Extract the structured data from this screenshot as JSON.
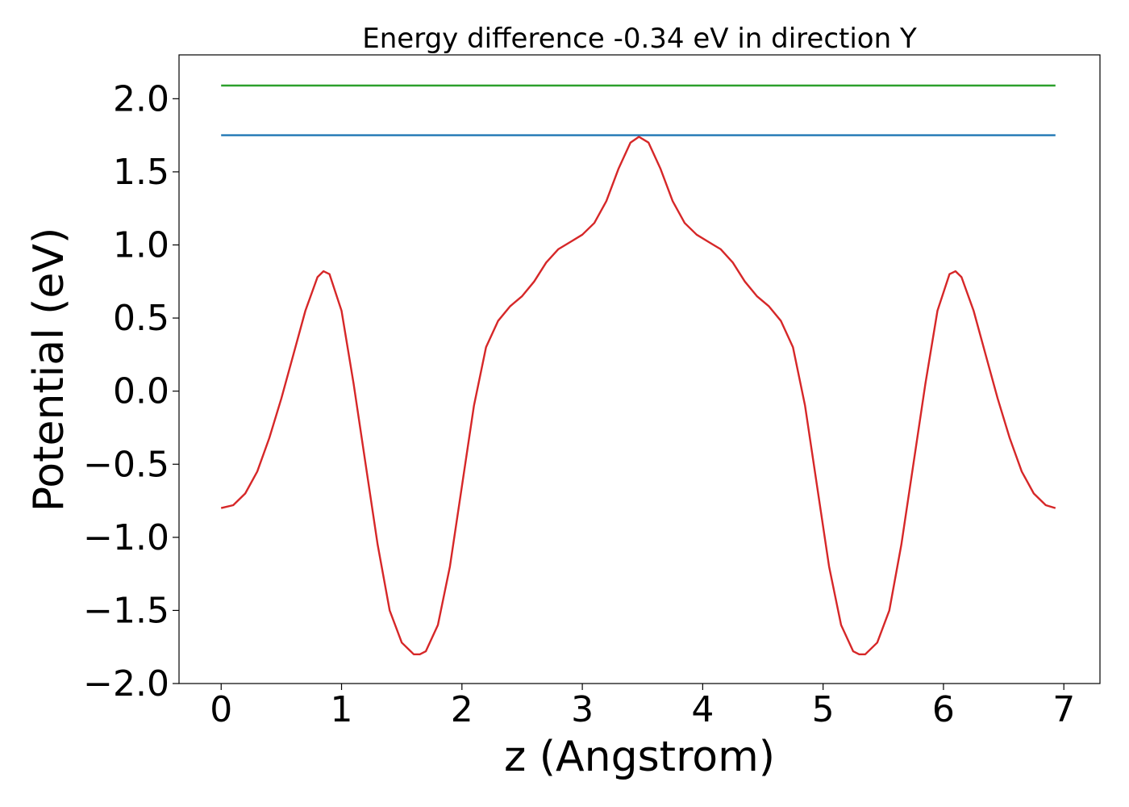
{
  "chart_data": {
    "type": "line",
    "title": "Energy difference -0.34 eV in direction Y",
    "xlabel": "z (Angstrom)",
    "ylabel": "Potential (eV)",
    "xlim": [
      -0.35,
      7.3
    ],
    "ylim": [
      -2.0,
      2.3
    ],
    "x_ticks": [
      0,
      1,
      2,
      3,
      4,
      5,
      6,
      7
    ],
    "x_tick_labels": [
      "0",
      "1",
      "2",
      "3",
      "4",
      "5",
      "6",
      "7"
    ],
    "y_ticks": [
      -2.0,
      -1.5,
      -1.0,
      -0.5,
      0.0,
      0.5,
      1.0,
      1.5,
      2.0
    ],
    "y_tick_labels": [
      "−2.0",
      "−1.5",
      "−1.0",
      "−0.5",
      "0.0",
      "0.5",
      "1.0",
      "1.5",
      "2.0"
    ],
    "grid": false,
    "series": [
      {
        "color": "#2ca02c",
        "points": [
          [
            0.0,
            2.09
          ],
          [
            6.93,
            2.09
          ]
        ]
      },
      {
        "color": "#1f77b4",
        "points": [
          [
            0.0,
            1.75
          ],
          [
            6.93,
            1.75
          ]
        ]
      },
      {
        "color": "#d62728",
        "points": [
          [
            0.0,
            -0.8
          ],
          [
            0.1,
            -0.78
          ],
          [
            0.2,
            -0.7
          ],
          [
            0.3,
            -0.55
          ],
          [
            0.4,
            -0.32
          ],
          [
            0.5,
            -0.05
          ],
          [
            0.6,
            0.25
          ],
          [
            0.7,
            0.55
          ],
          [
            0.8,
            0.78
          ],
          [
            0.85,
            0.82
          ],
          [
            0.9,
            0.8
          ],
          [
            1.0,
            0.55
          ],
          [
            1.1,
            0.05
          ],
          [
            1.2,
            -0.5
          ],
          [
            1.3,
            -1.05
          ],
          [
            1.4,
            -1.5
          ],
          [
            1.5,
            -1.72
          ],
          [
            1.6,
            -1.8
          ],
          [
            1.65,
            -1.8
          ],
          [
            1.7,
            -1.78
          ],
          [
            1.8,
            -1.6
          ],
          [
            1.9,
            -1.2
          ],
          [
            2.0,
            -0.65
          ],
          [
            2.1,
            -0.1
          ],
          [
            2.2,
            0.3
          ],
          [
            2.3,
            0.48
          ],
          [
            2.4,
            0.58
          ],
          [
            2.5,
            0.65
          ],
          [
            2.6,
            0.75
          ],
          [
            2.7,
            0.88
          ],
          [
            2.8,
            0.97
          ],
          [
            2.9,
            1.02
          ],
          [
            3.0,
            1.07
          ],
          [
            3.1,
            1.15
          ],
          [
            3.2,
            1.3
          ],
          [
            3.3,
            1.52
          ],
          [
            3.4,
            1.7
          ],
          [
            3.47,
            1.74
          ],
          [
            3.55,
            1.7
          ],
          [
            3.65,
            1.52
          ],
          [
            3.75,
            1.3
          ],
          [
            3.85,
            1.15
          ],
          [
            3.95,
            1.07
          ],
          [
            4.05,
            1.02
          ],
          [
            4.15,
            0.97
          ],
          [
            4.25,
            0.88
          ],
          [
            4.35,
            0.75
          ],
          [
            4.45,
            0.65
          ],
          [
            4.55,
            0.58
          ],
          [
            4.65,
            0.48
          ],
          [
            4.75,
            0.3
          ],
          [
            4.85,
            -0.1
          ],
          [
            4.95,
            -0.65
          ],
          [
            5.05,
            -1.2
          ],
          [
            5.15,
            -1.6
          ],
          [
            5.25,
            -1.78
          ],
          [
            5.3,
            -1.8
          ],
          [
            5.35,
            -1.8
          ],
          [
            5.45,
            -1.72
          ],
          [
            5.55,
            -1.5
          ],
          [
            5.65,
            -1.05
          ],
          [
            5.75,
            -0.5
          ],
          [
            5.85,
            0.05
          ],
          [
            5.95,
            0.55
          ],
          [
            6.05,
            0.8
          ],
          [
            6.1,
            0.82
          ],
          [
            6.15,
            0.78
          ],
          [
            6.25,
            0.55
          ],
          [
            6.35,
            0.25
          ],
          [
            6.45,
            -0.05
          ],
          [
            6.55,
            -0.32
          ],
          [
            6.65,
            -0.55
          ],
          [
            6.75,
            -0.7
          ],
          [
            6.85,
            -0.78
          ],
          [
            6.93,
            -0.8
          ]
        ]
      }
    ]
  }
}
